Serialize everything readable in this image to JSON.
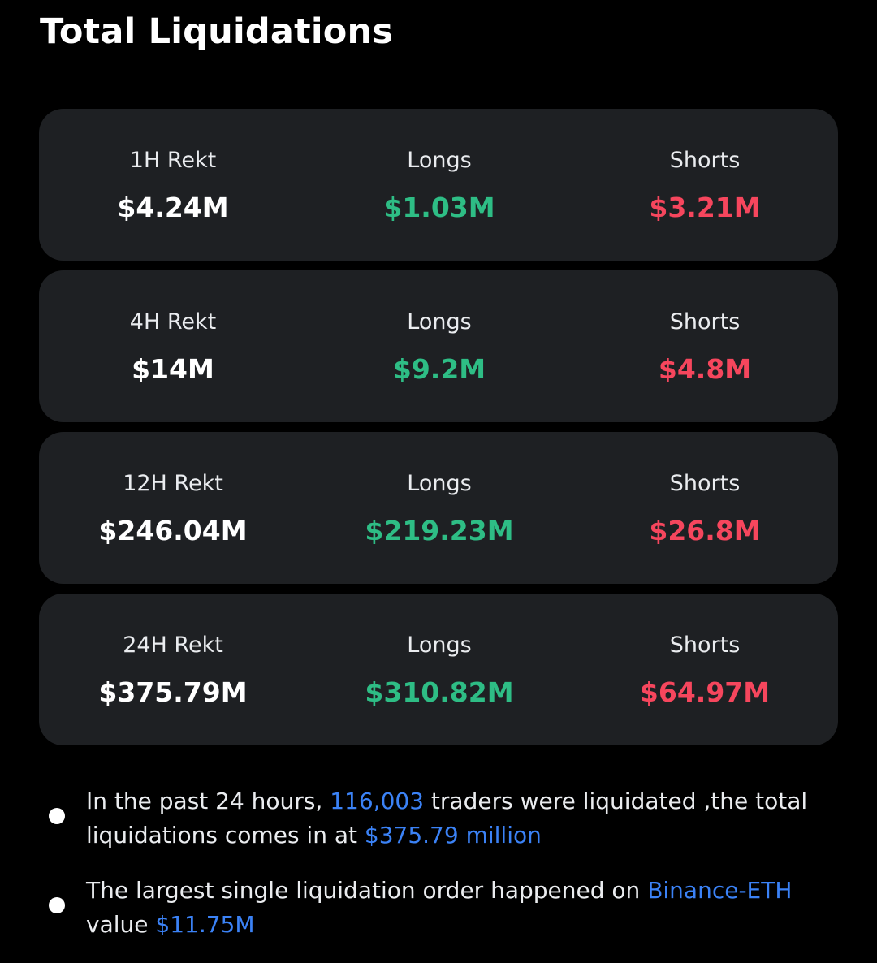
{
  "header": {
    "title": "Total Liquidations"
  },
  "cards": [
    {
      "period_label": "1H Rekt",
      "total": "$4.24M",
      "longs_label": "Longs",
      "longs": "$1.03M",
      "shorts_label": "Shorts",
      "shorts": "$3.21M"
    },
    {
      "period_label": "4H Rekt",
      "total": "$14M",
      "longs_label": "Longs",
      "longs": "$9.2M",
      "shorts_label": "Shorts",
      "shorts": "$4.8M"
    },
    {
      "period_label": "12H Rekt",
      "total": "$246.04M",
      "longs_label": "Longs",
      "longs": "$219.23M",
      "shorts_label": "Shorts",
      "shorts": "$26.8M"
    },
    {
      "period_label": "24H Rekt",
      "total": "$375.79M",
      "longs_label": "Longs",
      "longs": "$310.82M",
      "shorts_label": "Shorts",
      "shorts": "$64.97M"
    }
  ],
  "notes": {
    "note1": {
      "part1": "In the past 24 hours, ",
      "traders": "116,003",
      "part2": " traders were liquidated ,the total liquidations comes in at ",
      "amount": "$375.79 million"
    },
    "note2": {
      "part1": "The largest single liquidation order happened on ",
      "exchange": "Binance-ETH",
      "part2": " value ",
      "amount": "$11.75M"
    }
  },
  "colors": {
    "long": "#2ebd85",
    "short": "#f6465d",
    "highlight": "#3b82f6",
    "card_bg": "#1e2023"
  }
}
